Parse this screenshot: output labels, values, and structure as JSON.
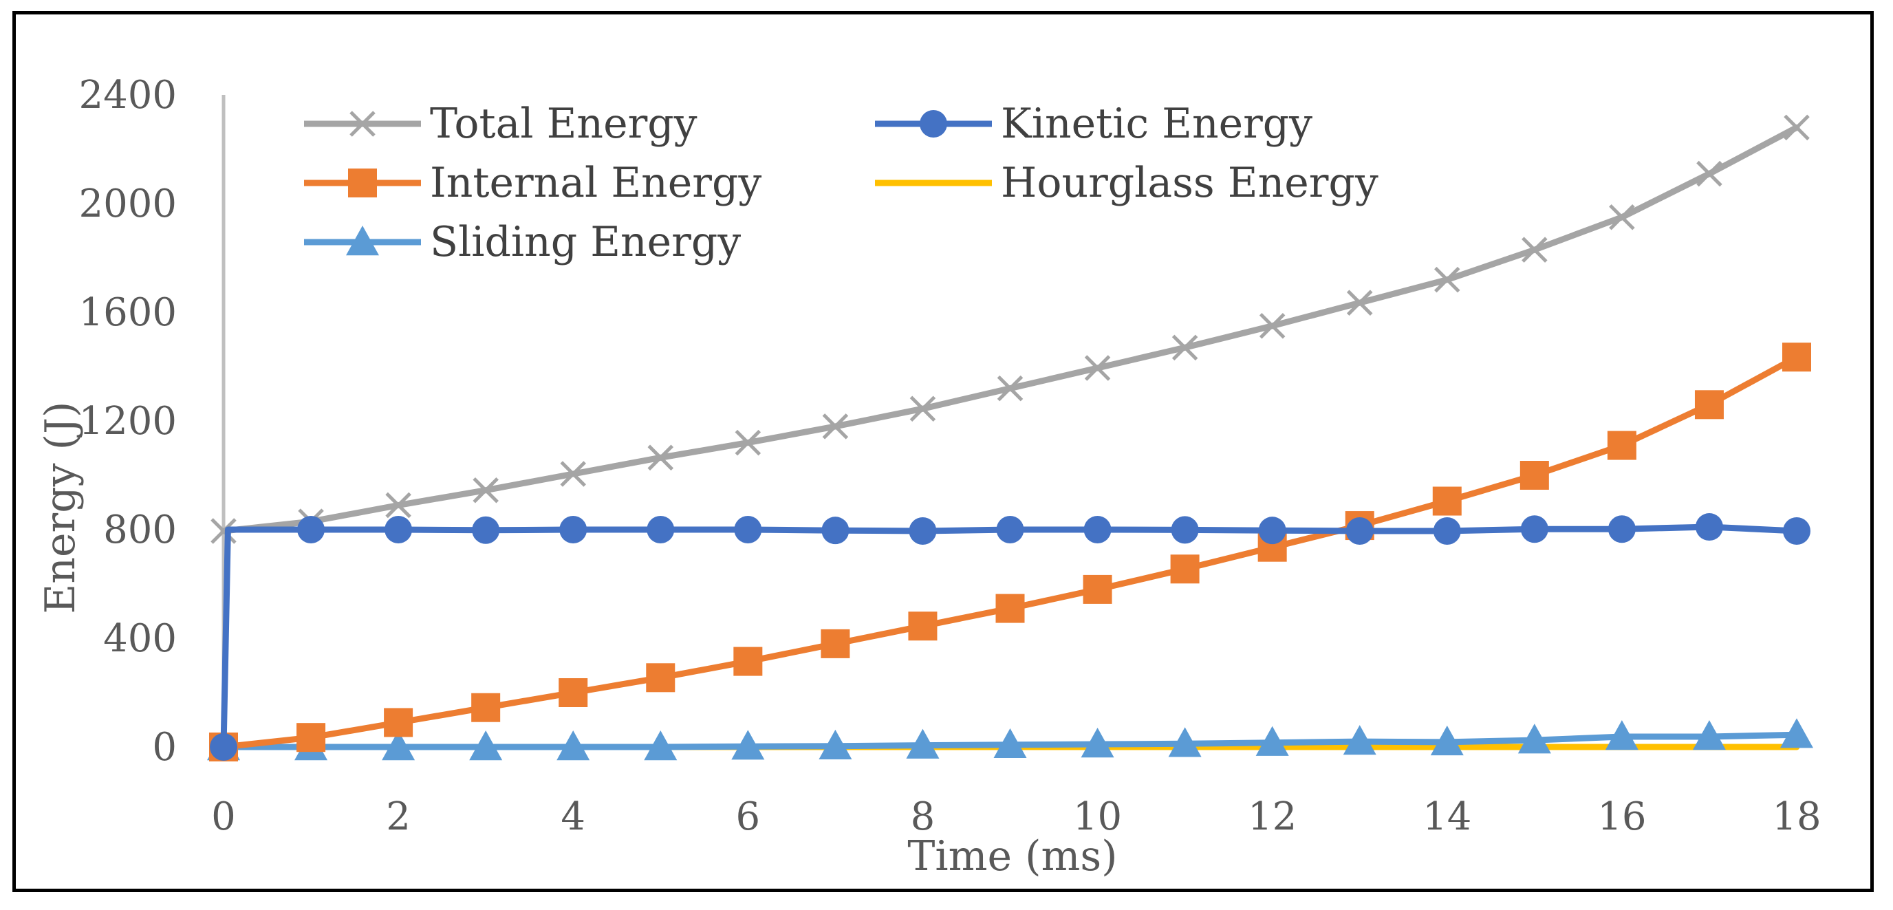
{
  "chart_data": {
    "type": "line",
    "title": "",
    "xlabel": "Time (ms)",
    "ylabel": "Energy (J)",
    "xlim": [
      0,
      18
    ],
    "ylim": [
      0,
      2400
    ],
    "xticks": [
      0,
      2,
      4,
      6,
      8,
      10,
      12,
      14,
      16,
      18
    ],
    "yticks": [
      0,
      400,
      800,
      1200,
      1600,
      2000,
      2400
    ],
    "grid": false,
    "legend_position": "top-left",
    "series": [
      {
        "name": "Total Energy",
        "color": "#a5a5a5",
        "marker": "x",
        "x": [
          0,
          1,
          2,
          3,
          4,
          5,
          6,
          7,
          8,
          9,
          10,
          11,
          12,
          13,
          14,
          15,
          16,
          17,
          18
        ],
        "y": [
          795,
          830,
          890,
          945,
          1005,
          1065,
          1120,
          1180,
          1245,
          1320,
          1395,
          1470,
          1550,
          1635,
          1720,
          1830,
          1950,
          2110,
          2280
        ]
      },
      {
        "name": "Kinetic Energy",
        "color": "#4472c4",
        "marker": "circle",
        "x": [
          0,
          0.05,
          1,
          2,
          3,
          4,
          5,
          6,
          7,
          8,
          9,
          10,
          11,
          12,
          13,
          14,
          15,
          16,
          17,
          18
        ],
        "y": [
          0,
          800,
          800,
          800,
          798,
          800,
          800,
          800,
          797,
          795,
          800,
          800,
          799,
          797,
          795,
          795,
          802,
          802,
          810,
          795
        ]
      },
      {
        "name": "Internal Energy",
        "color": "#ed7d31",
        "marker": "square",
        "x": [
          0,
          1,
          2,
          3,
          4,
          5,
          6,
          7,
          8,
          9,
          10,
          11,
          12,
          13,
          14,
          15,
          16,
          17,
          18
        ],
        "y": [
          0,
          35,
          90,
          145,
          200,
          255,
          315,
          380,
          445,
          510,
          580,
          655,
          735,
          815,
          905,
          1000,
          1110,
          1260,
          1435
        ]
      },
      {
        "name": "Hourglass Energy",
        "color": "#ffc000",
        "marker": "none",
        "x": [
          0,
          1,
          2,
          3,
          4,
          5,
          6,
          7,
          8,
          9,
          10,
          11,
          12,
          13,
          14,
          15,
          16,
          17,
          18
        ],
        "y": [
          0,
          0,
          0,
          0,
          0,
          0,
          0,
          0,
          0,
          0,
          0,
          0,
          0,
          0,
          0,
          0,
          0,
          0,
          0
        ]
      },
      {
        "name": "Sliding Energy",
        "color": "#5b9bd5",
        "marker": "triangle",
        "x": [
          0,
          1,
          2,
          3,
          4,
          5,
          6,
          7,
          8,
          9,
          10,
          11,
          12,
          13,
          14,
          15,
          16,
          17,
          18
        ],
        "y": [
          0,
          0,
          0,
          0,
          0,
          0,
          2,
          3,
          6,
          8,
          10,
          12,
          16,
          20,
          18,
          25,
          38,
          38,
          45
        ]
      }
    ]
  }
}
